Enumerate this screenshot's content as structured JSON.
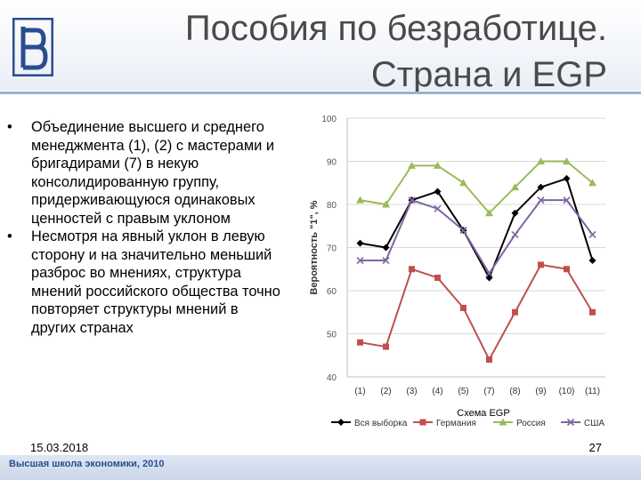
{
  "slide": {
    "title_line1": "Пособия по безработице.",
    "title_line2": "Страна и EGP",
    "bullets": [
      "Объединение высшего и среднего менеджмента (1), (2) с мастерами и бригадирами (7) в некую консолидированную группу, придерживающуюся одинаковых ценностей с правым уклоном",
      "Несмотря на явный уклон в левую сторону и на значительно меньший разброс во мнениях, структура мнений российского общества точно повторяет структуры мнений в других странах"
    ],
    "bullet_glyph": "•",
    "footer_date": "15.03.2018",
    "footer_page": "27",
    "footer_org": "Высшая школа экономики, 2010"
  },
  "colors": {
    "accent": "#2a4d8f",
    "title": "#4a4a4a"
  },
  "chart_data": {
    "type": "line",
    "ylabel": "Вероятность \"1\", %",
    "xlabel": "Схема EGP",
    "ylim": [
      40,
      100
    ],
    "yticks": [
      "40",
      "50",
      "60",
      "70",
      "80",
      "90",
      "100"
    ],
    "categories": [
      "(1)",
      "(2)",
      "(3)",
      "(4)",
      "(5)",
      "(7)",
      "(8)",
      "(9)",
      "(10)",
      "(11)"
    ],
    "series": [
      {
        "name": "Вся выборка",
        "color": "#000000",
        "marker": "diamond",
        "values": [
          71,
          70,
          81,
          83,
          74,
          63,
          78,
          84,
          86,
          67
        ]
      },
      {
        "name": "Германия",
        "color": "#c0504d",
        "marker": "square",
        "values": [
          48,
          47,
          65,
          63,
          56,
          44,
          55,
          66,
          65,
          55
        ]
      },
      {
        "name": "Россия",
        "color": "#9bbb59",
        "marker": "triangle",
        "values": [
          81,
          80,
          89,
          89,
          85,
          78,
          84,
          90,
          90,
          85
        ]
      },
      {
        "name": "США",
        "color": "#8064a2",
        "marker": "x",
        "values": [
          67,
          67,
          81,
          79,
          74,
          64,
          73,
          81,
          81,
          73
        ]
      }
    ],
    "grid": true,
    "legend": "bottom"
  }
}
